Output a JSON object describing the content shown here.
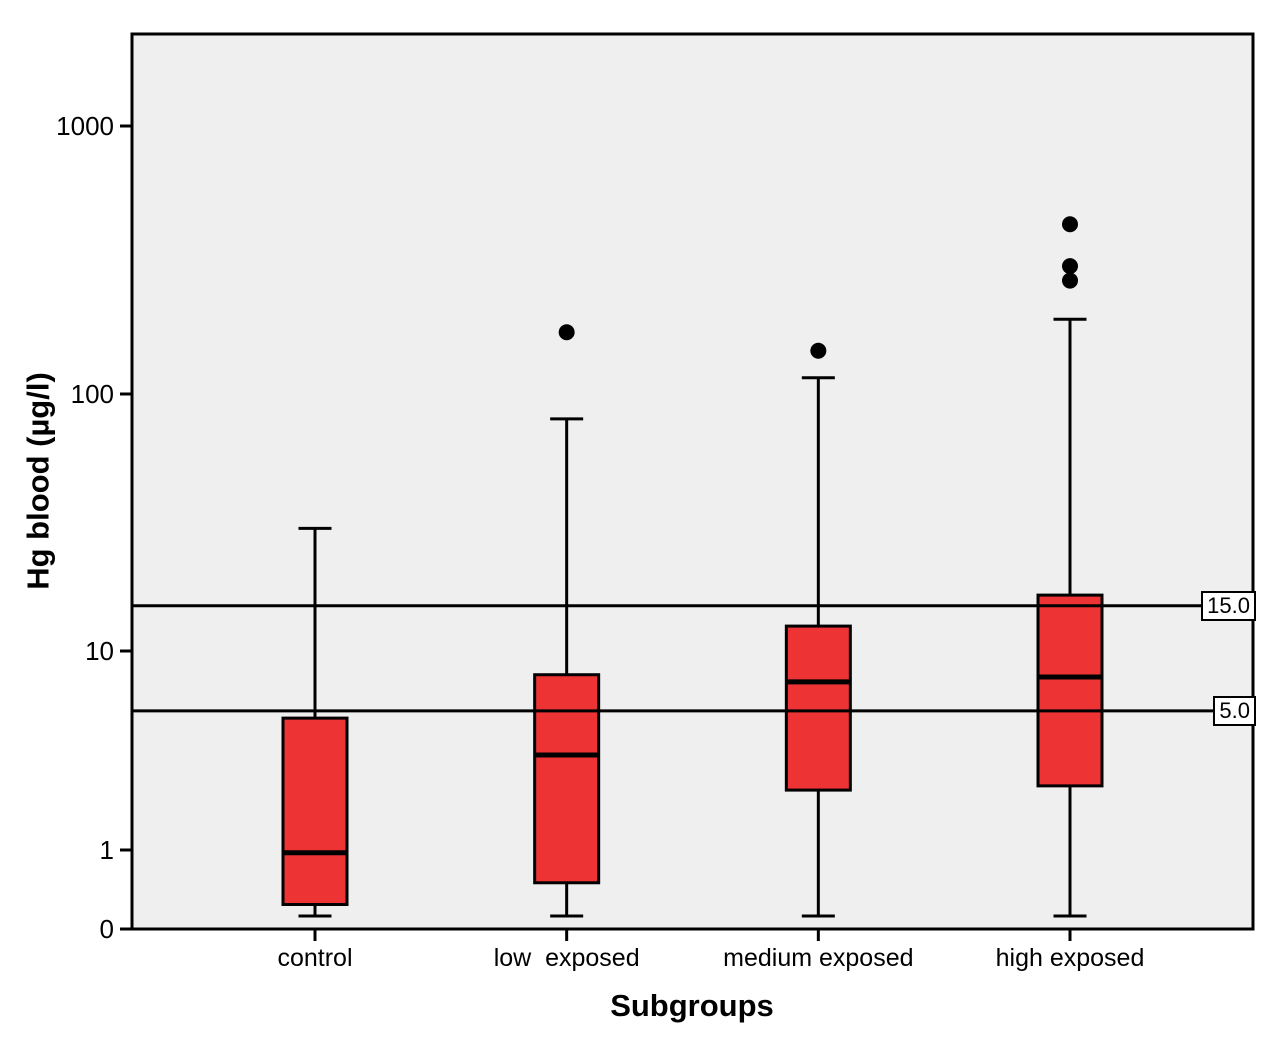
{
  "chart_data": {
    "type": "boxplot",
    "title": "",
    "xlabel": "Subgroups",
    "ylabel": "Hg blood (µg/l)",
    "y_scale": "log",
    "grid": "off",
    "legend": "none",
    "y_ticks": [
      0,
      1,
      10,
      100,
      1000
    ],
    "y_tick_labels": [
      "0",
      "1",
      "10",
      "100",
      "1000"
    ],
    "categories": [
      "control",
      "low  exposed",
      "medium exposed",
      "high exposed"
    ],
    "series": [
      {
        "name": "control",
        "whisker_low": 0.3,
        "q1": 0.37,
        "median": 0.95,
        "q3": 4.6,
        "whisker_high": 30,
        "outliers": []
      },
      {
        "name": "low exposed",
        "whisker_low": 0.3,
        "q1": 0.55,
        "median": 3.0,
        "q3": 7.6,
        "whisker_high": 80,
        "outliers": [
          170
        ]
      },
      {
        "name": "medium exposed",
        "whisker_low": 0.3,
        "q1": 2.0,
        "median": 7.0,
        "q3": 12.5,
        "whisker_high": 115,
        "outliers": [
          145
        ]
      },
      {
        "name": "high exposed",
        "whisker_low": 0.3,
        "q1": 2.1,
        "median": 7.4,
        "q3": 16.5,
        "whisker_high": 190,
        "outliers": [
          265,
          300,
          430
        ]
      }
    ],
    "reference_lines": [
      {
        "value": 15,
        "label": "15.0"
      },
      {
        "value": 5,
        "label": "5.0"
      }
    ],
    "colors": {
      "box_fill": "#ee3334",
      "line": "#000000",
      "outlier": "#000000",
      "plot_bg": "#efefef",
      "page_bg": "#ffffff"
    }
  }
}
